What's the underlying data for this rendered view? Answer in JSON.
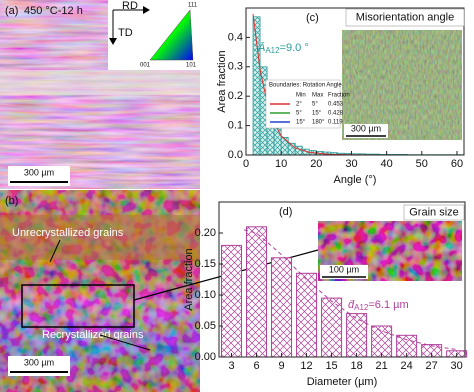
{
  "chart_data": [
    {
      "type": "histogram",
      "panel_label": "(c)",
      "inset_title": "Misorientation angle",
      "scale_bar": "300 µm",
      "x_label": "Angle (°)",
      "y_label": "Area fraction",
      "color": "#2a9d9a",
      "bins": [
        2,
        4,
        6,
        8,
        10,
        12,
        14,
        16,
        18,
        20,
        22,
        24,
        26,
        28,
        30,
        32,
        34,
        36,
        38,
        40,
        42,
        44,
        46,
        48,
        50,
        52,
        54,
        56,
        58,
        60,
        62
      ],
      "values": [
        0.47,
        0.3,
        0.17,
        0.1,
        0.06,
        0.04,
        0.03,
        0.02,
        0.015,
        0.012,
        0.01,
        0.008,
        0.006,
        0.005,
        0.004,
        0.004,
        0.003,
        0.003,
        0.002,
        0.002,
        0.002,
        0.002,
        0.001,
        0.001,
        0.001,
        0.001,
        0.001,
        0.001,
        0.001,
        0.001
      ],
      "fit": {
        "color": "#e03030",
        "x": [
          2,
          4,
          6,
          8,
          10,
          14,
          18,
          24,
          30,
          40,
          50,
          60
        ],
        "y": [
          0.48,
          0.29,
          0.18,
          0.11,
          0.065,
          0.024,
          0.009,
          0.002,
          0.001,
          0,
          0,
          0
        ]
      },
      "xlim": [
        0,
        62
      ],
      "xticks": [
        0,
        10,
        20,
        30,
        40,
        50,
        60
      ],
      "ylim": [
        0,
        0.5
      ],
      "yticks": [
        {
          "value": 0,
          "label": "0.0"
        },
        0.1,
        0.2,
        0.3,
        0.4
      ],
      "annotation": {
        "symbol": "Ā",
        "subscript": "A12",
        "text": "=9.0 °"
      },
      "legend": {
        "title": "Boundaries: Rotation Angle",
        "columns": [
          "Min",
          "Max",
          "Fraction"
        ],
        "rows": [
          {
            "color": "#e03030",
            "cells": [
              "2°",
              "5°",
              "0.453"
            ]
          },
          {
            "color": "#2fa02f",
            "cells": [
              "5°",
              "15°",
              "0.428"
            ]
          },
          {
            "color": "#2040d0",
            "cells": [
              "15°",
              "180°",
              "0.119"
            ]
          }
        ]
      }
    },
    {
      "type": "bar",
      "panel_label": "(d)",
      "inset_title": "Grain size",
      "scale_bar": "100 µm",
      "x_label": "Diameter (µm)",
      "y_label": "Area fraction",
      "color": "#b0409a",
      "x": [
        3,
        6,
        9,
        12,
        15,
        18,
        21,
        24,
        27,
        30
      ],
      "values": [
        0.18,
        0.21,
        0.16,
        0.135,
        0.095,
        0.07,
        0.05,
        0.035,
        0.02,
        0.01
      ],
      "fit": {
        "color": "#b0409a",
        "x": [
          4.5,
          6,
          9,
          12,
          15,
          18,
          21,
          24,
          27,
          30
        ],
        "y": [
          0.205,
          0.2,
          0.165,
          0.125,
          0.09,
          0.062,
          0.042,
          0.028,
          0.018,
          0.012
        ]
      },
      "xlim": [
        1.5,
        31
      ],
      "xticks": [
        3,
        6,
        9,
        12,
        15,
        18,
        21,
        24,
        27,
        30
      ],
      "ylim": [
        0,
        0.25
      ],
      "yticks": [
        {
          "value": 0,
          "label": "0.00"
        },
        0.05,
        {
          "value": 0.1,
          "label": "0.10"
        },
        0.15,
        {
          "value": 0.2,
          "label": "0.20"
        }
      ],
      "annotation": {
        "symbol": "d̄",
        "subscript": "A12",
        "text": "=6.1 µm"
      }
    }
  ],
  "panels": {
    "a": {
      "label": "(a)",
      "condition": "450 °C-12 h",
      "rd": "RD",
      "td": "TD",
      "pole_111": "111",
      "pole_001": "001",
      "pole_101": "101",
      "scale_bar": "300 µm"
    },
    "b": {
      "label": "(b)",
      "unrecrystallized": "Unrecrystallized grains",
      "recrystallized": "Recrystallized grains",
      "scale_bar": "300 µm"
    }
  }
}
